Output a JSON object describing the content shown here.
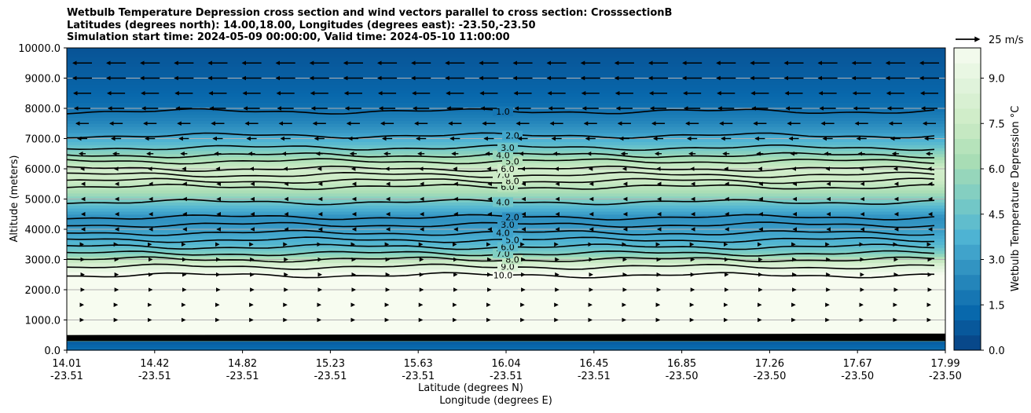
{
  "chart_data": {
    "type": "heatmap",
    "title_lines": [
      "Wetbulb Temperature Depression cross section and wind vectors parallel to cross section: CrosssectionB",
      "Latitudes (degrees north): 14.00,18.00, Longitudes (degrees east): -23.50,-23.50",
      "Simulation start time: 2024-05-09 00:00:00, Valid time: 2024-05-10 11:00:00"
    ],
    "ylabel": "Altitude (meters)",
    "xlabel_lat": "Latitude (degrees N)",
    "xlabel_lon": "Longitude (degrees E)",
    "ylim": [
      0,
      10000
    ],
    "yticks": [
      0,
      1000,
      2000,
      3000,
      4000,
      5000,
      6000,
      7000,
      8000,
      9000,
      10000
    ],
    "ytick_labels": [
      "0.0",
      "1000.0",
      "2000.0",
      "3000.0",
      "4000.0",
      "5000.0",
      "6000.0",
      "7000.0",
      "8000.0",
      "9000.0",
      "10000.0"
    ],
    "xlim": [
      14.01,
      17.99
    ],
    "xticks_lat": [
      "14.01",
      "14.42",
      "14.82",
      "15.23",
      "15.63",
      "16.04",
      "16.45",
      "16.85",
      "17.26",
      "17.67",
      "17.99"
    ],
    "xticks_lon": [
      "-23.51",
      "-23.51",
      "-23.51",
      "-23.51",
      "-23.51",
      "-23.51",
      "-23.51",
      "-23.50",
      "-23.50",
      "-23.50",
      "-23.50"
    ],
    "grid": "horizontal",
    "colorbar": {
      "label": "Wetbulb Temperature Depression °C",
      "range": [
        0,
        10
      ],
      "ticks": [
        "0.0",
        "1.5",
        "3.0",
        "4.5",
        "6.0",
        "7.5",
        "9.0"
      ],
      "tick_values": [
        0,
        1.5,
        3,
        4.5,
        6,
        7.5,
        9
      ],
      "colormap": "GnBu_r",
      "colors": [
        "#084081",
        "#0868ac",
        "#2b8cbe",
        "#4eb3d3",
        "#7bccc4",
        "#a8ddb5",
        "#ccebc5",
        "#e0f3db",
        "#f7fcf0"
      ]
    },
    "quiver_key": {
      "label": "25 m/s",
      "speed": 25
    },
    "depression_profile": {
      "altitude": [
        0,
        250,
        500,
        1000,
        2000,
        2500,
        2800,
        3000,
        3200,
        3500,
        4000,
        4400,
        4800,
        5200,
        5600,
        6000,
        6400,
        6800,
        7200,
        7600,
        8000,
        8500,
        9000,
        9500,
        10000
      ],
      "value": [
        1.5,
        1.0,
        10.5,
        10.5,
        10.5,
        10.0,
        8.5,
        7.0,
        5.2,
        4.0,
        3.0,
        2.6,
        4.2,
        6.2,
        7.5,
        7.8,
        6.0,
        4.2,
        3.0,
        2.2,
        1.6,
        1.2,
        1.0,
        0.8,
        0.6
      ]
    },
    "contours": [
      {
        "label": "10.0",
        "altitude": 2480
      },
      {
        "label": "9.0",
        "altitude": 2760
      },
      {
        "label": "8.0",
        "altitude": 3000
      },
      {
        "label": "7.0",
        "altitude": 3200
      },
      {
        "label": "6.0",
        "altitude": 3420
      },
      {
        "label": "5.0",
        "altitude": 3650
      },
      {
        "label": "4.0",
        "altitude": 3880
      },
      {
        "label": "3.0",
        "altitude": 4150
      },
      {
        "label": "2.0",
        "altitude": 4400
      },
      {
        "label": "4.0",
        "altitude": 4900
      },
      {
        "label": "6.0",
        "altitude": 5400
      },
      {
        "label": "8.0",
        "altitude": 5600
      },
      {
        "label": "7.0",
        "altitude": 5800
      },
      {
        "label": "6.0",
        "altitude": 6000
      },
      {
        "label": "5.0",
        "altitude": 6250
      },
      {
        "label": "4.0",
        "altitude": 6450
      },
      {
        "label": "3.0",
        "altitude": 6700
      },
      {
        "label": "2.0",
        "altitude": 7100
      },
      {
        "label": "1.0",
        "altitude": 7900
      }
    ],
    "wind_levels": [
      {
        "altitude": 9500,
        "u": -12
      },
      {
        "altitude": 9000,
        "u": -12
      },
      {
        "altitude": 8500,
        "u": -11
      },
      {
        "altitude": 8000,
        "u": -10
      },
      {
        "altitude": 7500,
        "u": -8
      },
      {
        "altitude": 7000,
        "u": -6
      },
      {
        "altitude": 6500,
        "u": -4
      },
      {
        "altitude": 6000,
        "u": -2
      },
      {
        "altitude": 5500,
        "u": -1
      },
      {
        "altitude": 5000,
        "u": -1
      },
      {
        "altitude": 4500,
        "u": -1
      },
      {
        "altitude": 4000,
        "u": -1
      },
      {
        "altitude": 3500,
        "u": 1
      },
      {
        "altitude": 3000,
        "u": 2
      },
      {
        "altitude": 2500,
        "u": 2
      },
      {
        "altitude": 2000,
        "u": 2
      },
      {
        "altitude": 1500,
        "u": 1
      },
      {
        "altitude": 1000,
        "u": 1
      }
    ]
  }
}
